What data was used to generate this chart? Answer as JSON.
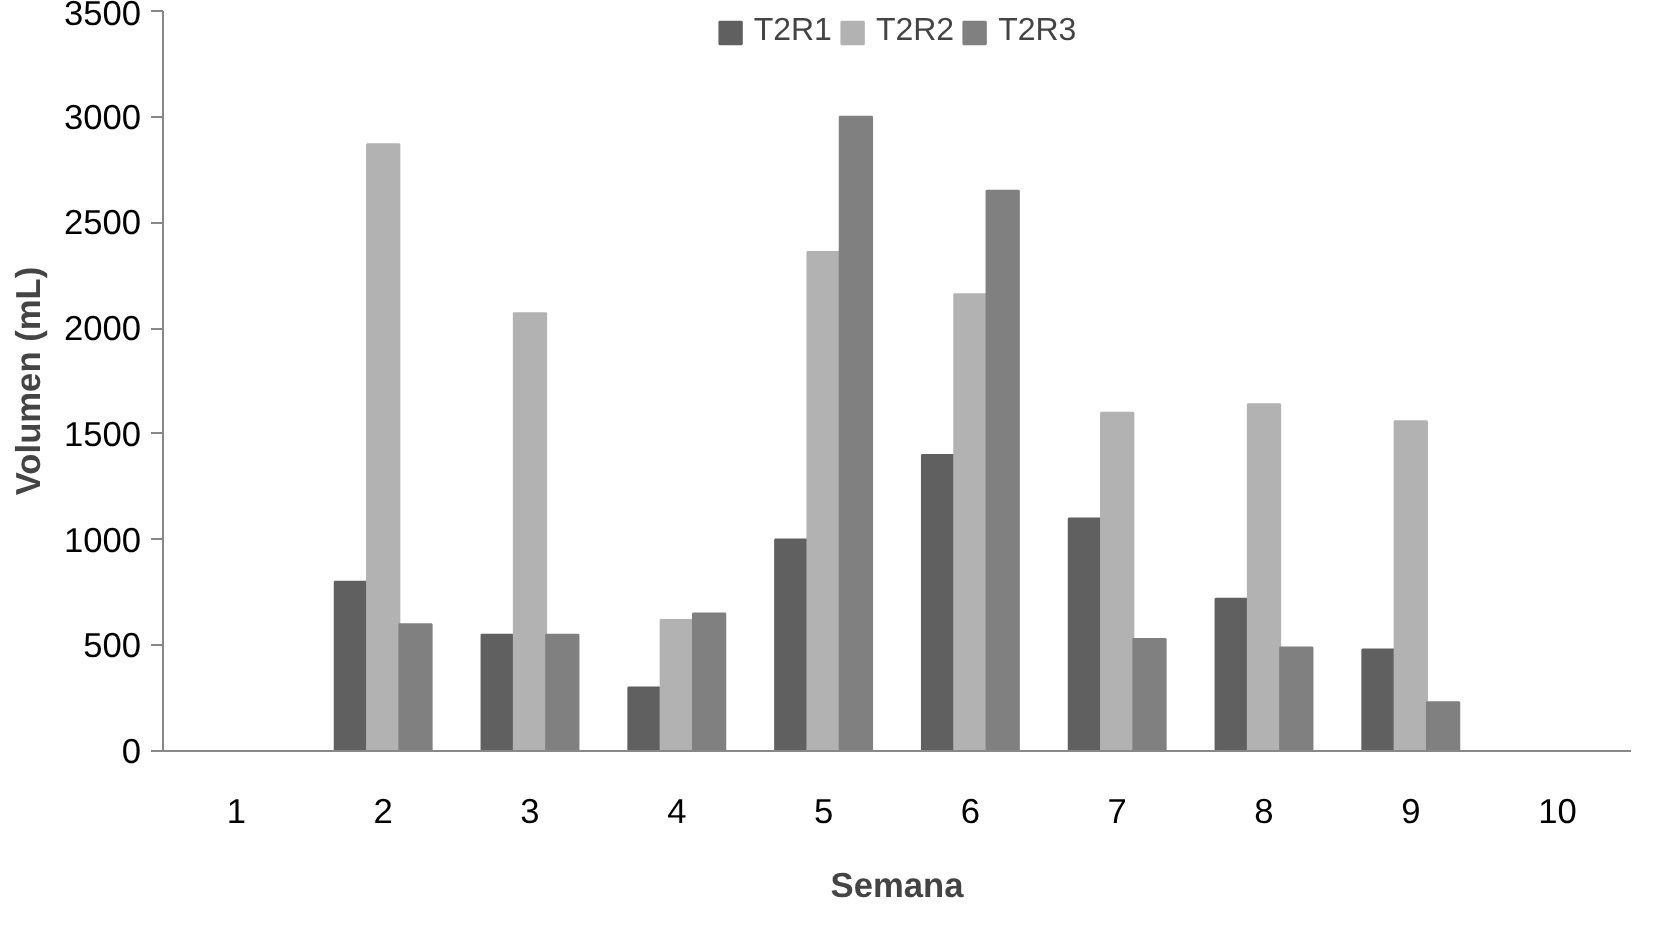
{
  "chart_data": {
    "type": "bar",
    "xlabel": "Semana",
    "ylabel": "Volumen (mL)",
    "categories": [
      "1",
      "2",
      "3",
      "4",
      "5",
      "6",
      "7",
      "8",
      "9",
      "10"
    ],
    "series": [
      {
        "name": "T2R1",
        "color": "#606060",
        "values": [
          null,
          800,
          550,
          300,
          1000,
          1400,
          1100,
          720,
          480,
          null
        ]
      },
      {
        "name": "T2R2",
        "color": "#b2b2b2",
        "values": [
          null,
          2870,
          2070,
          620,
          2360,
          2160,
          1600,
          1640,
          1560,
          null
        ]
      },
      {
        "name": "T2R3",
        "color": "#808080",
        "values": [
          null,
          600,
          550,
          650,
          3000,
          2650,
          530,
          490,
          230,
          null
        ]
      }
    ],
    "ylim": [
      0,
      3500
    ],
    "yticks": [
      0,
      500,
      1000,
      1500,
      2000,
      2500,
      3000,
      3500
    ],
    "grid": false,
    "legend": "top"
  }
}
